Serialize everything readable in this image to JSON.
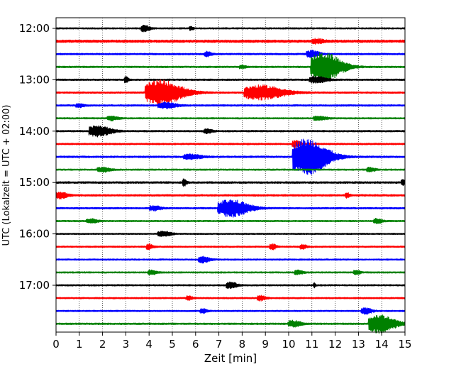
{
  "chart_data": {
    "type": "line",
    "subtype": "helicorder",
    "xlabel": "Zeit  [min]",
    "ylabel": "UTC (Lokalzeit = UTC + 02:00)",
    "xlim": [
      0,
      15
    ],
    "x_ticks": [
      0,
      1,
      2,
      3,
      4,
      5,
      6,
      7,
      8,
      9,
      10,
      11,
      12,
      13,
      14,
      15
    ],
    "x_ticks_labels": [
      "0",
      "1",
      "2",
      "3",
      "4",
      "5",
      "6",
      "7",
      "8",
      "9",
      "10",
      "11",
      "12",
      "13",
      "14",
      "15"
    ],
    "y_tick_labels": [
      "12:00",
      "13:00",
      "14:00",
      "15:00",
      "16:00",
      "17:00"
    ],
    "grid": "vertical dotted lines at each minute",
    "trace_interval_minutes": 15,
    "colors": [
      "#000000",
      "#ff0000",
      "#0000ff",
      "#008000"
    ],
    "traces": [
      {
        "start": "12:00",
        "color": "#000000",
        "noise": 0.12,
        "events": [
          {
            "t": 3.8,
            "amp": 0.45,
            "dur": 0.4
          },
          {
            "t": 5.8,
            "amp": 0.25,
            "dur": 0.2
          }
        ]
      },
      {
        "start": "12:15",
        "color": "#ff0000",
        "noise": 0.2,
        "events": [
          {
            "t": 11.2,
            "amp": 0.3,
            "dur": 0.5
          }
        ]
      },
      {
        "start": "12:30",
        "color": "#0000ff",
        "noise": 0.13,
        "events": [
          {
            "t": 6.5,
            "amp": 0.35,
            "dur": 0.3
          },
          {
            "t": 11.0,
            "amp": 0.5,
            "dur": 0.6
          }
        ]
      },
      {
        "start": "12:45",
        "color": "#008000",
        "noise": 0.13,
        "events": [
          {
            "t": 11.5,
            "amp": 2.2,
            "dur": 1.4
          },
          {
            "t": 8.0,
            "amp": 0.25,
            "dur": 0.3
          }
        ]
      },
      {
        "start": "13:00",
        "color": "#000000",
        "noise": 0.13,
        "events": [
          {
            "t": 3.0,
            "amp": 0.45,
            "dur": 0.2
          },
          {
            "t": 11.2,
            "amp": 0.5,
            "dur": 0.8
          }
        ]
      },
      {
        "start": "13:15",
        "color": "#ff0000",
        "noise": 0.13,
        "events": [
          {
            "t": 4.5,
            "amp": 1.9,
            "dur": 1.7
          },
          {
            "t": 8.8,
            "amp": 1.1,
            "dur": 1.8
          }
        ]
      },
      {
        "start": "13:30",
        "color": "#0000ff",
        "noise": 0.13,
        "events": [
          {
            "t": 4.7,
            "amp": 0.45,
            "dur": 0.8
          },
          {
            "t": 1.0,
            "amp": 0.25,
            "dur": 0.4
          }
        ]
      },
      {
        "start": "13:45",
        "color": "#008000",
        "noise": 0.12,
        "events": [
          {
            "t": 2.4,
            "amp": 0.3,
            "dur": 0.5
          },
          {
            "t": 11.3,
            "amp": 0.3,
            "dur": 0.6
          }
        ]
      },
      {
        "start": "14:00",
        "color": "#000000",
        "noise": 0.13,
        "events": [
          {
            "t": 1.8,
            "amp": 0.8,
            "dur": 1.0
          },
          {
            "t": 6.5,
            "amp": 0.3,
            "dur": 0.4
          }
        ]
      },
      {
        "start": "14:15",
        "color": "#ff0000",
        "noise": 0.13,
        "events": [
          {
            "t": 10.3,
            "amp": 0.5,
            "dur": 0.4
          }
        ]
      },
      {
        "start": "14:30",
        "color": "#0000ff",
        "noise": 0.14,
        "events": [
          {
            "t": 5.8,
            "amp": 0.35,
            "dur": 0.8
          },
          {
            "t": 10.8,
            "amp": 2.8,
            "dur": 1.6
          }
        ]
      },
      {
        "start": "14:45",
        "color": "#008000",
        "noise": 0.12,
        "events": [
          {
            "t": 2.0,
            "amp": 0.35,
            "dur": 0.6
          },
          {
            "t": 13.5,
            "amp": 0.3,
            "dur": 0.4
          }
        ]
      },
      {
        "start": "15:00",
        "color": "#000000",
        "noise": 0.15,
        "events": [
          {
            "t": 5.5,
            "amp": 0.5,
            "dur": 0.2
          },
          {
            "t": 14.9,
            "amp": 0.4,
            "dur": 0.2
          }
        ]
      },
      {
        "start": "15:15",
        "color": "#ff0000",
        "noise": 0.14,
        "events": [
          {
            "t": 0.2,
            "amp": 0.5,
            "dur": 0.5
          },
          {
            "t": 12.5,
            "amp": 0.4,
            "dur": 0.2
          }
        ]
      },
      {
        "start": "15:30",
        "color": "#0000ff",
        "noise": 0.13,
        "events": [
          {
            "t": 7.5,
            "amp": 1.3,
            "dur": 1.4
          },
          {
            "t": 4.2,
            "amp": 0.35,
            "dur": 0.5
          }
        ]
      },
      {
        "start": "15:45",
        "color": "#008000",
        "noise": 0.12,
        "events": [
          {
            "t": 1.5,
            "amp": 0.3,
            "dur": 0.5
          },
          {
            "t": 13.8,
            "amp": 0.35,
            "dur": 0.4
          }
        ]
      },
      {
        "start": "16:00",
        "color": "#000000",
        "noise": 0.11,
        "events": [
          {
            "t": 4.6,
            "amp": 0.4,
            "dur": 0.6
          }
        ]
      },
      {
        "start": "16:15",
        "color": "#ff0000",
        "noise": 0.12,
        "events": [
          {
            "t": 4.0,
            "amp": 0.4,
            "dur": 0.3
          },
          {
            "t": 9.3,
            "amp": 0.4,
            "dur": 0.3
          },
          {
            "t": 10.6,
            "amp": 0.35,
            "dur": 0.3
          }
        ]
      },
      {
        "start": "16:30",
        "color": "#0000ff",
        "noise": 0.12,
        "events": [
          {
            "t": 6.3,
            "amp": 0.45,
            "dur": 0.5
          }
        ]
      },
      {
        "start": "16:45",
        "color": "#008000",
        "noise": 0.12,
        "events": [
          {
            "t": 4.1,
            "amp": 0.35,
            "dur": 0.4
          },
          {
            "t": 10.4,
            "amp": 0.3,
            "dur": 0.4
          },
          {
            "t": 12.9,
            "amp": 0.3,
            "dur": 0.3
          }
        ]
      },
      {
        "start": "17:00",
        "color": "#000000",
        "noise": 0.12,
        "events": [
          {
            "t": 7.5,
            "amp": 0.45,
            "dur": 0.5
          },
          {
            "t": 11.1,
            "amp": 0.35,
            "dur": 0.1
          }
        ]
      },
      {
        "start": "17:15",
        "color": "#ff0000",
        "noise": 0.12,
        "events": [
          {
            "t": 8.8,
            "amp": 0.35,
            "dur": 0.4
          },
          {
            "t": 5.7,
            "amp": 0.3,
            "dur": 0.3
          }
        ]
      },
      {
        "start": "17:30",
        "color": "#0000ff",
        "noise": 0.12,
        "events": [
          {
            "t": 6.3,
            "amp": 0.35,
            "dur": 0.3
          },
          {
            "t": 13.3,
            "amp": 0.45,
            "dur": 0.5
          }
        ]
      },
      {
        "start": "17:45",
        "color": "#008000",
        "noise": 0.13,
        "events": [
          {
            "t": 13.9,
            "amp": 1.4,
            "dur": 1.2
          },
          {
            "t": 10.2,
            "amp": 0.45,
            "dur": 0.6
          }
        ]
      }
    ]
  }
}
